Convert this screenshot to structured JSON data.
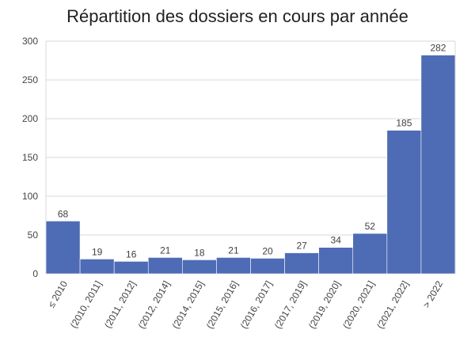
{
  "chart_data": {
    "type": "bar",
    "title": "Répartition des dossiers en cours par année",
    "xlabel": "",
    "ylabel": "",
    "categories": [
      "≤ 2010",
      "(2010, 2011]",
      "(2011, 2012]",
      "(2012, 2014]",
      "(2014, 2015]",
      "(2015, 2016]",
      "(2016, 2017]",
      "(2017, 2019]",
      "(2019, 2020]",
      "(2020, 2021]",
      "(2021, 2022]",
      "> 2022"
    ],
    "values": [
      68,
      19,
      16,
      21,
      18,
      21,
      20,
      27,
      34,
      52,
      185,
      282
    ],
    "ylim": [
      0,
      300
    ],
    "yticks": [
      0,
      50,
      100,
      150,
      200,
      250,
      300
    ],
    "grid": true,
    "legend": "none",
    "bar_color": "#4e6bb5",
    "grid_color": "#d9d9d9"
  }
}
